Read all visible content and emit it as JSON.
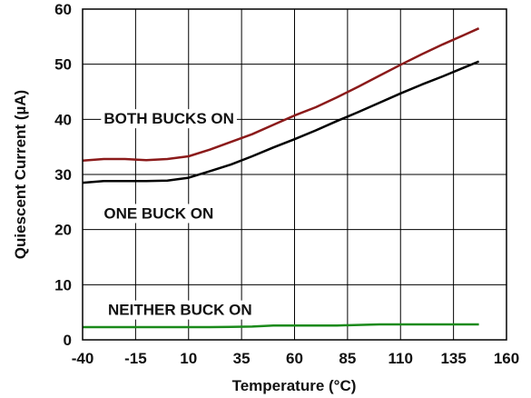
{
  "chart_data": {
    "type": "line",
    "xlabel": "Temperature (°C)",
    "ylabel": "Quiescent Current (µA)",
    "xlim": [
      -40,
      160
    ],
    "ylim": [
      0,
      60
    ],
    "xticks": [
      -40,
      -15,
      10,
      35,
      60,
      85,
      110,
      135,
      160
    ],
    "yticks": [
      0,
      10,
      20,
      30,
      40,
      50,
      60
    ],
    "grid": true,
    "series": [
      {
        "label": "BOTH BUCKS ON",
        "color": "#8b1a1a",
        "x": [
          -40,
          -30,
          -20,
          -10,
          0,
          10,
          20,
          30,
          40,
          50,
          60,
          70,
          80,
          90,
          100,
          110,
          120,
          130,
          140,
          147
        ],
        "y": [
          32.5,
          32.8,
          32.8,
          32.6,
          32.8,
          33.3,
          34.5,
          35.9,
          37.3,
          39.0,
          40.7,
          42.2,
          44.0,
          45.9,
          47.9,
          49.9,
          51.8,
          53.6,
          55.3,
          56.5
        ]
      },
      {
        "label": "ONE BUCK ON",
        "color": "#000000",
        "x": [
          -40,
          -30,
          -20,
          -10,
          0,
          10,
          20,
          30,
          40,
          50,
          60,
          70,
          80,
          90,
          100,
          110,
          120,
          130,
          140,
          147
        ],
        "y": [
          28.5,
          28.8,
          28.8,
          28.8,
          28.9,
          29.4,
          30.6,
          31.8,
          33.3,
          34.9,
          36.4,
          38.0,
          39.7,
          41.3,
          43.0,
          44.7,
          46.3,
          47.8,
          49.4,
          50.5
        ]
      },
      {
        "label": "NEITHER BUCK ON",
        "color": "#1a8a1a",
        "x": [
          -40,
          -20,
          0,
          20,
          40,
          50,
          60,
          80,
          90,
          100,
          120,
          147
        ],
        "y": [
          2.3,
          2.3,
          2.3,
          2.3,
          2.4,
          2.6,
          2.6,
          2.6,
          2.7,
          2.8,
          2.8,
          2.8
        ]
      }
    ]
  }
}
